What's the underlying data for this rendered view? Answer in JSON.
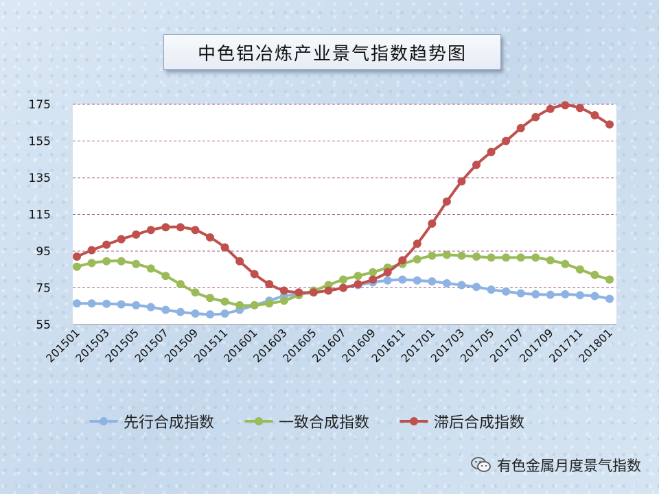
{
  "chart_data": {
    "type": "line",
    "title": "中色铝冶炼产业景气指数趋势图",
    "ylim": [
      55,
      175
    ],
    "yticks": [
      55,
      75,
      95,
      115,
      135,
      155,
      175
    ],
    "x": [
      "201501",
      "201502",
      "201503",
      "201504",
      "201505",
      "201506",
      "201507",
      "201508",
      "201509",
      "201510",
      "201511",
      "201512",
      "201601",
      "201602",
      "201603",
      "201604",
      "201605",
      "201606",
      "201607",
      "201608",
      "201609",
      "201610",
      "201611",
      "201612",
      "201701",
      "201702",
      "201703",
      "201704",
      "201705",
      "201706",
      "201707",
      "201708",
      "201709",
      "201710",
      "201711",
      "201712",
      "201801"
    ],
    "xtick_labels": [
      "201501",
      "201503",
      "201505",
      "201507",
      "201509",
      "201511",
      "201601",
      "201603",
      "201605",
      "201607",
      "201609",
      "201611",
      "201701",
      "201703",
      "201705",
      "201707",
      "201709",
      "201711",
      "201801"
    ],
    "grid": true,
    "legend_position": "bottom",
    "series": [
      {
        "name": "先行合成指数",
        "color": "#8db3e2",
        "values": [
          66.5,
          66.5,
          66.3,
          66,
          65.5,
          64.5,
          63,
          61.8,
          61,
          60.5,
          61,
          63,
          65.5,
          68,
          70.5,
          71.5,
          72.5,
          73.5,
          75,
          76.5,
          78,
          79,
          79.5,
          79,
          78.5,
          77.5,
          76.5,
          75.5,
          74,
          73,
          72,
          71.5,
          71.2,
          71.5,
          71,
          70.5,
          69
        ]
      },
      {
        "name": "一致合成指数",
        "color": "#9bbb59",
        "values": [
          86.5,
          88.5,
          89.5,
          89.5,
          88,
          85.5,
          81.5,
          77,
          72.5,
          69.5,
          67.5,
          65.5,
          65.5,
          66.5,
          68,
          71,
          73.5,
          76.5,
          79.5,
          81.5,
          83.5,
          86,
          88,
          90.5,
          92.5,
          93,
          92.5,
          92,
          91.5,
          91.5,
          91.5,
          91.5,
          90,
          88,
          85,
          82,
          79.5
        ]
      },
      {
        "name": "滞后合成指数",
        "color": "#c0504d",
        "values": [
          92,
          95.5,
          98.5,
          101.5,
          104,
          106.5,
          108,
          108,
          106.5,
          102.5,
          97,
          89.5,
          82.5,
          77,
          73.5,
          72.5,
          72.5,
          73.5,
          75,
          77,
          79.5,
          83.5,
          90,
          99,
          110,
          122,
          133,
          142,
          149,
          155,
          162,
          168,
          172.5,
          174.5,
          173,
          169,
          164
        ]
      }
    ]
  },
  "watermark": {
    "text": "有色金属月度景气指数",
    "icon": "wechat-icon"
  }
}
